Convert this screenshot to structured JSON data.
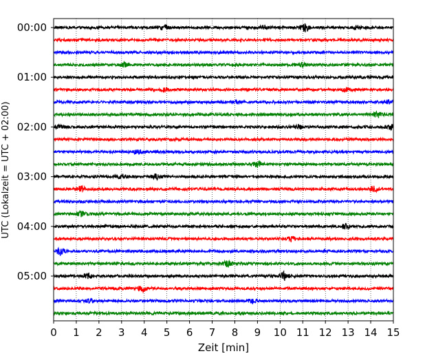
{
  "chart_data": {
    "type": "line",
    "xlabel": "Zeit  [min]",
    "ylabel": "UTC (Lokalzeit = UTC + 02:00)",
    "xlim": [
      0,
      15
    ],
    "x_ticks": [
      "0",
      "1",
      "2",
      "3",
      "4",
      "5",
      "6",
      "7",
      "8",
      "9",
      "10",
      "11",
      "12",
      "13",
      "14",
      "15"
    ],
    "y_ticks": [
      "00:00",
      "01:00",
      "02:00",
      "03:00",
      "04:00",
      "05:00"
    ],
    "trace_minutes": 15,
    "trace_colors": [
      "#000000",
      "#ff0000",
      "#0000ff",
      "#008000"
    ],
    "traces_start": "00:00",
    "traces_end": "05:45",
    "trace_count": 24,
    "grid": "vertical dotted lines at each minute",
    "events": [
      {
        "trace": 0,
        "minute": 11.1,
        "amplitude": 1.0
      },
      {
        "trace": 0,
        "minute": 4.9,
        "amplitude": 0.7
      },
      {
        "trace": 0,
        "minute": 9.3,
        "amplitude": 0.55
      },
      {
        "trace": 0,
        "minute": 13.4,
        "amplitude": 0.45
      },
      {
        "trace": 3,
        "minute": 3.1,
        "amplitude": 0.5
      },
      {
        "trace": 3,
        "minute": 11.0,
        "amplitude": 0.5
      },
      {
        "trace": 5,
        "minute": 4.9,
        "amplitude": 0.6
      },
      {
        "trace": 5,
        "minute": 12.9,
        "amplitude": 0.5
      },
      {
        "trace": 6,
        "minute": 8.1,
        "amplitude": 0.4
      },
      {
        "trace": 6,
        "minute": 14.8,
        "amplitude": 0.5
      },
      {
        "trace": 7,
        "minute": 14.3,
        "amplitude": 0.7
      },
      {
        "trace": 8,
        "minute": 0.3,
        "amplitude": 0.5
      },
      {
        "trace": 8,
        "minute": 10.8,
        "amplitude": 0.5
      },
      {
        "trace": 8,
        "minute": 14.8,
        "amplitude": 0.7
      },
      {
        "trace": 10,
        "minute": 3.7,
        "amplitude": 0.5
      },
      {
        "trace": 11,
        "minute": 9.0,
        "amplitude": 0.7
      },
      {
        "trace": 12,
        "minute": 3.0,
        "amplitude": 0.6
      },
      {
        "trace": 12,
        "minute": 4.5,
        "amplitude": 0.6
      },
      {
        "trace": 13,
        "minute": 1.2,
        "amplitude": 0.6
      },
      {
        "trace": 13,
        "minute": 14.1,
        "amplitude": 0.7
      },
      {
        "trace": 15,
        "minute": 1.2,
        "amplitude": 0.7
      },
      {
        "trace": 16,
        "minute": 12.9,
        "amplitude": 0.6
      },
      {
        "trace": 17,
        "minute": 10.5,
        "amplitude": 0.6
      },
      {
        "trace": 18,
        "minute": 0.3,
        "amplitude": 0.9
      },
      {
        "trace": 19,
        "minute": 7.7,
        "amplitude": 1.0
      },
      {
        "trace": 20,
        "minute": 1.5,
        "amplitude": 0.8
      },
      {
        "trace": 20,
        "minute": 10.2,
        "amplitude": 0.95
      },
      {
        "trace": 21,
        "minute": 3.9,
        "amplitude": 0.7
      },
      {
        "trace": 22,
        "minute": 1.6,
        "amplitude": 0.5
      },
      {
        "trace": 22,
        "minute": 8.8,
        "amplitude": 0.5
      }
    ]
  }
}
